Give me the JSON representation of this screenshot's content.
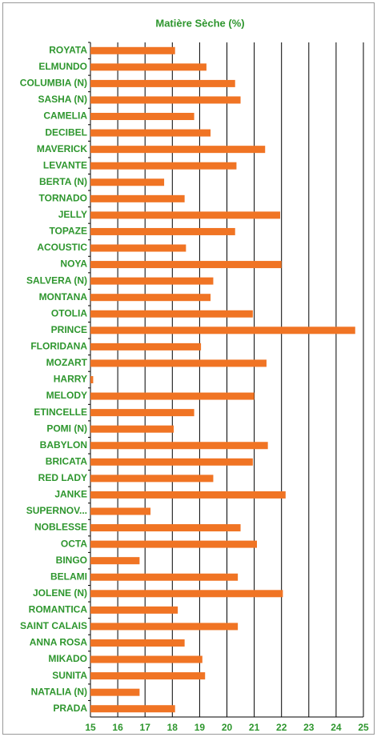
{
  "chart_data": {
    "type": "barh",
    "title": "Matière Sèche (%)",
    "categories": [
      "ROYATA",
      "ELMUNDO",
      "COLUMBIA (N)",
      "SASHA (N)",
      "CAMELIA",
      "DECIBEL",
      "MAVERICK",
      "LEVANTE",
      "BERTA (N)",
      "TORNADO",
      "JELLY",
      "TOPAZE",
      "ACOUSTIC",
      "NOYA",
      "SALVERA (N)",
      "MONTANA",
      "OTOLIA",
      "PRINCE",
      "FLORIDANA",
      "MOZART",
      "HARRY",
      "MELODY",
      "ETINCELLE",
      "POMI (N)",
      "BABYLON",
      "BRICATA",
      "RED LADY",
      "JANKE",
      "SUPERNOV...",
      "NOBLESSE",
      "OCTA",
      "BINGO",
      "BELAMI",
      "JOLENE (N)",
      "ROMANTICA",
      "SAINT CALAIS",
      "ANNA ROSA",
      "MIKADO",
      "SUNITA",
      "NATALIA (N)",
      "PRADA"
    ],
    "values": [
      18.1,
      19.25,
      20.3,
      20.5,
      18.8,
      19.4,
      21.4,
      20.35,
      17.7,
      18.45,
      21.95,
      20.3,
      18.5,
      22.0,
      19.5,
      19.4,
      20.95,
      24.7,
      19.05,
      21.45,
      15.1,
      21.0,
      18.8,
      18.05,
      21.5,
      20.95,
      19.5,
      22.15,
      17.2,
      20.5,
      21.1,
      16.8,
      20.4,
      22.05,
      18.2,
      20.4,
      18.45,
      19.1,
      19.2,
      16.8,
      18.1
    ],
    "color": "#f07424",
    "xlim": [
      15,
      25
    ],
    "xticks": [
      15,
      16,
      17,
      18,
      19,
      20,
      21,
      22,
      23,
      24,
      25
    ],
    "grid": true
  }
}
